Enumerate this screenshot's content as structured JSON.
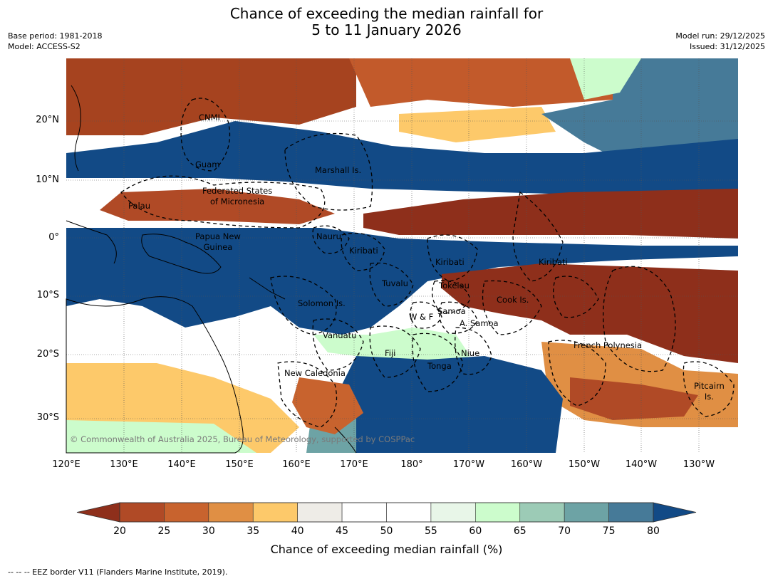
{
  "header": {
    "title_line1": "Chance of exceeding the median rainfall for",
    "title_line2": "5 to 11 January 2026",
    "base_period": "Base period: 1981-2018",
    "model": "Model: ACCESS-S2",
    "model_run": "Model run: 29/12/2025",
    "issued": "Issued: 31/12/2025"
  },
  "map": {
    "lat_labels": [
      "20°N",
      "10°N",
      "0°",
      "10°S",
      "20°S",
      "30°S"
    ],
    "lon_labels": [
      "120°E",
      "130°E",
      "140°E",
      "150°E",
      "160°E",
      "170°E",
      "180°",
      "170°W",
      "160°W",
      "150°W",
      "140°W",
      "130°W"
    ],
    "places": {
      "cnmi": "CNMI",
      "guam": "Guam",
      "marshall": "Marshall Is.",
      "fsm": "Federated States\nof Micronesia",
      "palau": "Palau",
      "nauru": "Nauru",
      "png": "Papua New\nGuinea",
      "kiribati_w": "Kiribati",
      "kiribati_c": "Kiribati",
      "kiribati_e": "Kiribati",
      "tuvalu": "Tuvalu",
      "tokelau": "Tokelau",
      "cook": "Cook Is.",
      "solomon": "Solomon Is.",
      "wf": "W & F",
      "samoa": "Samoa",
      "asamoa": "A. Samoa",
      "vanuatu": "Vanuatu",
      "fiji": "Fiji",
      "niue": "Niue",
      "tonga": "Tonga",
      "frpoly": "French Polynesia",
      "newcal": "New Caledonia",
      "pitcairn": "Pitcairn\nIs."
    },
    "copyright": "© Commonwealth of Australia 2025, Bureau of Meteorology, supported by COSPPac"
  },
  "colorbar": {
    "ticks": [
      "20",
      "25",
      "30",
      "35",
      "40",
      "45",
      "50",
      "55",
      "60",
      "65",
      "70",
      "75",
      "80"
    ],
    "colors": [
      "#8e2f1b",
      "#b04a26",
      "#c8632e",
      "#e08f44",
      "#fdc96a",
      "#eeece7",
      "#ffffff",
      "#ffffff",
      "#e8f6e8",
      "#ccfccc",
      "#9ccbb6",
      "#6da3a5",
      "#467a98",
      "#124a86"
    ],
    "label": "Chance of exceeding median rainfall (%)"
  },
  "footnote": "--  --  -- EEZ border V11 (Flanders Marine Institute, 2019)."
}
